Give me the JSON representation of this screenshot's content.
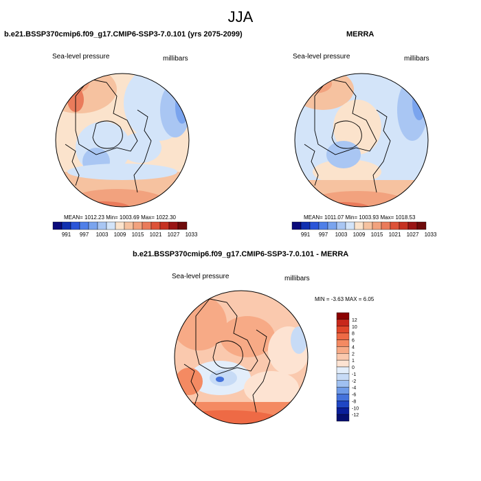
{
  "page": {
    "main_title": "JJA"
  },
  "panels": {
    "model": {
      "title": "b.e21.BSSP370cmip6.f09_g17.CMIP6-SSP3-7.0.101 (yrs 2075-2099)",
      "variable": "Sea-level pressure",
      "units": "millibars",
      "stats": "MEAN= 1012.23  Min= 1003.69  Max= 1022.30"
    },
    "obs": {
      "title": "MERRA",
      "variable": "Sea-level pressure",
      "units": "millibars",
      "stats": "MEAN= 1011.07  Min= 1003.93  Max= 1018.53"
    },
    "diff": {
      "title": "b.e21.BSSP370cmip6.f09_g17.CMIP6-SSP3-7.0.101 - MERRA",
      "variable": "Sea-level pressure",
      "units": "millibars",
      "stats": "MIN =  -3.63 MAX =   6.05"
    }
  },
  "chart_data": [
    {
      "type": "heatmap",
      "title": "b.e21.BSSP370cmip6.f09_g17.CMIP6-SSP3-7.0.101 (yrs 2075-2099)",
      "subtitle": "Sea-level pressure",
      "units": "millibars",
      "projection": "north polar stereographic",
      "mean": 1012.23,
      "min": 1003.69,
      "max": 1022.3,
      "colorbar_tick_labels": [
        "991",
        "997",
        "1003",
        "1009",
        "1015",
        "1021",
        "1027",
        "1033"
      ],
      "colorbar_colors": [
        "#0a0a7a",
        "#1030b0",
        "#2a55d8",
        "#4f7fe8",
        "#7aa4ee",
        "#a9c6f3",
        "#d3e4f9",
        "#fbe3cc",
        "#f6c2a0",
        "#f2a27e",
        "#ea7b5b",
        "#dd5238",
        "#c63222",
        "#9a1515",
        "#6e0b0b"
      ]
    },
    {
      "type": "heatmap",
      "title": "MERRA",
      "subtitle": "Sea-level pressure",
      "units": "millibars",
      "projection": "north polar stereographic",
      "mean": 1011.07,
      "min": 1003.93,
      "max": 1018.53,
      "colorbar_tick_labels": [
        "991",
        "997",
        "1003",
        "1009",
        "1015",
        "1021",
        "1027",
        "1033"
      ],
      "colorbar_colors": [
        "#0a0a7a",
        "#1030b0",
        "#2a55d8",
        "#4f7fe8",
        "#7aa4ee",
        "#a9c6f3",
        "#d3e4f9",
        "#fbe3cc",
        "#f6c2a0",
        "#f2a27e",
        "#ea7b5b",
        "#dd5238",
        "#c63222",
        "#9a1515",
        "#6e0b0b"
      ]
    },
    {
      "type": "heatmap",
      "title": "b.e21.BSSP370cmip6.f09_g17.CMIP6-SSP3-7.0.101 - MERRA",
      "subtitle": "Sea-level pressure",
      "units": "millibars",
      "projection": "north polar stereographic",
      "min": -3.63,
      "max": 6.05,
      "colorbar_tick_labels": [
        "12",
        "10",
        "8",
        "6",
        "4",
        "2",
        "1",
        "0",
        "-1",
        "-2",
        "-4",
        "-6",
        "-8",
        "-10",
        "-12"
      ],
      "colorbar_colors": [
        "#8b0000",
        "#c8281b",
        "#e0472a",
        "#ee6a45",
        "#f48a62",
        "#f7aa86",
        "#fac9ae",
        "#fde3d2",
        "#e3eefb",
        "#c7dbf6",
        "#9fc0f1",
        "#6f9be8",
        "#4472dc",
        "#1f46c4",
        "#0a1f9a",
        "#050f70"
      ]
    }
  ]
}
